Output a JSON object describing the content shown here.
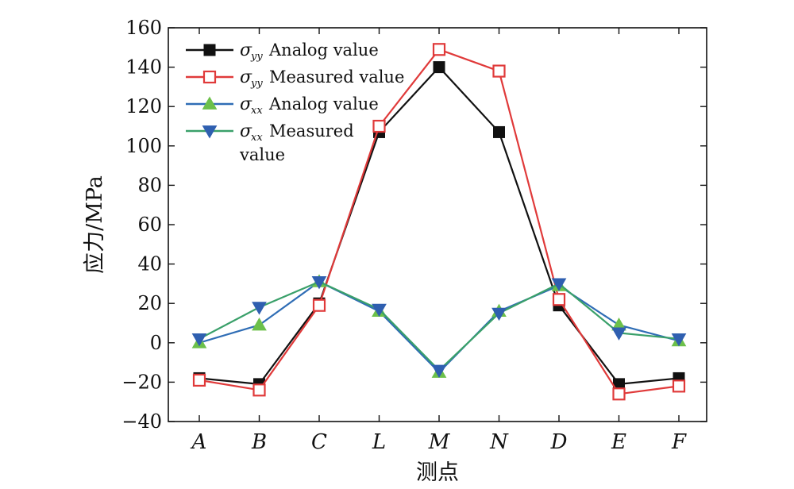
{
  "chart_data": {
    "type": "line",
    "categories": [
      "A",
      "B",
      "C",
      "L",
      "M",
      "N",
      "D",
      "E",
      "F"
    ],
    "xlabel": "测点",
    "ylabel": "应力/MPa",
    "ylim": [
      -40,
      160
    ],
    "yticks": [
      -40,
      -20,
      0,
      20,
      40,
      60,
      80,
      100,
      120,
      140,
      160
    ],
    "legend_position": "top-left",
    "series": [
      {
        "symbol": "σ",
        "subscript": "yy",
        "name": "Analog value",
        "name_line2": "",
        "color": "#111111",
        "marker": "filled-square",
        "values": [
          -18,
          -21,
          20,
          107,
          140,
          107,
          19,
          -21,
          -18
        ]
      },
      {
        "symbol": "σ",
        "subscript": "yy",
        "name": "Measured value",
        "name_line2": "",
        "color": "#e03a3a",
        "marker": "open-square",
        "values": [
          -19,
          -24,
          19,
          110,
          149,
          138,
          22,
          -26,
          -22
        ]
      },
      {
        "symbol": "σ",
        "subscript": "xx",
        "name": "Analog value",
        "name_line2": "",
        "color": "#2f6db5",
        "marker": "triangle-up",
        "marker_color": "#6cc04a",
        "values": [
          0,
          9,
          31,
          16,
          -15,
          16,
          29,
          9,
          1
        ]
      },
      {
        "symbol": "σ",
        "subscript": "xx",
        "name": "Measured",
        "name_line2": "value",
        "color": "#3aa06a",
        "marker": "triangle-down",
        "marker_color": "#2f5fb0",
        "values": [
          2,
          18,
          31,
          17,
          -14,
          15,
          30,
          5,
          2
        ]
      }
    ]
  }
}
